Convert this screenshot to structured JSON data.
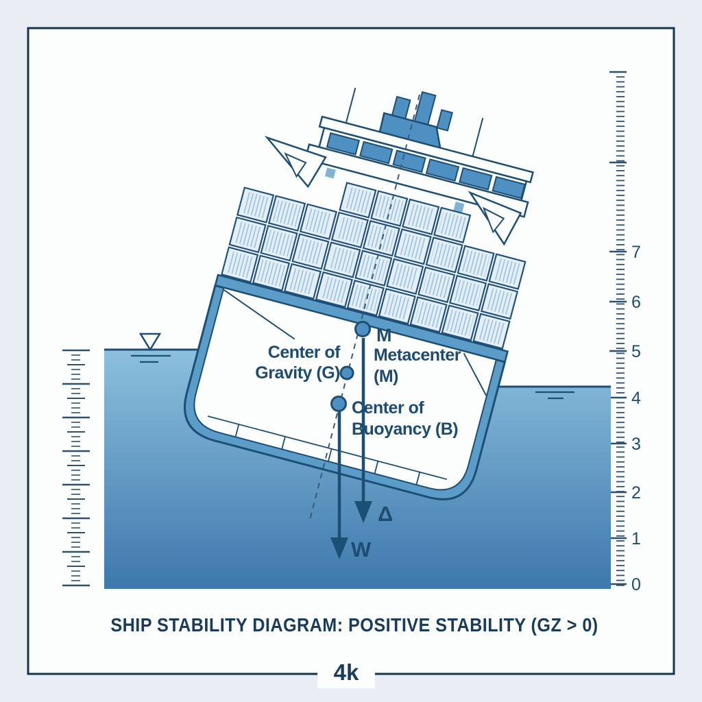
{
  "title": "SHIP STABILITY DIAGRAM: POSITIVE STABILITY (GZ > 0)",
  "watermark": "4k",
  "annotations": {
    "metacenter_point": "M",
    "metacenter": [
      "Metacenter",
      "(M)"
    ],
    "gravity": [
      "Center of",
      "Gravity (G)"
    ],
    "buoyancy": [
      "Center of",
      "Buoyancy (B)"
    ],
    "weight_symbol": "W",
    "displacement_symbol": "Δ"
  },
  "right_ruler": {
    "labels": [
      "7",
      "6",
      "5",
      "4",
      "3",
      "2",
      "1",
      "0"
    ]
  },
  "colors": {
    "page_bg": "#e8eef3",
    "frame": "#16344f",
    "dark_line": "#1d4e74",
    "text": "#1e4b70",
    "title_text": "#1a3c5c",
    "mid_blue": "#4e90c2",
    "hull_band": "#5b9cc9",
    "container_fill": "#e4eff7",
    "container_stripe": "#9fc4dd",
    "container_stroke": "#20527d",
    "tick": "#2f4f6b",
    "water_top": "#8fc2df",
    "water_bottom": "#3c77ac"
  }
}
